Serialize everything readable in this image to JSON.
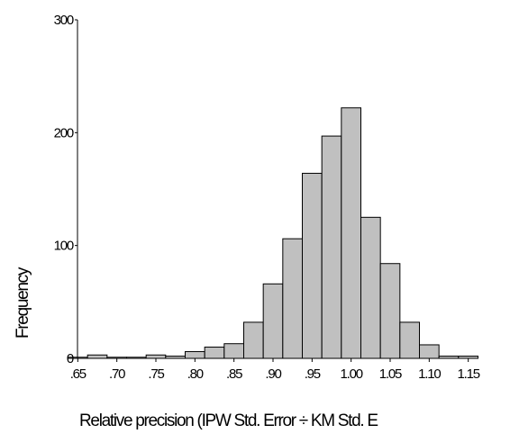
{
  "colors": {
    "bar_fill": "#c0c0c0",
    "bar_stroke": "#000000",
    "axis": "#000000",
    "background": "#ffffff"
  },
  "chart_data": {
    "type": "bar",
    "xlabel": "Relative precision (IPW Std. Error ÷ KM Std. E",
    "ylabel": "Frequency",
    "ylim": [
      0,
      300
    ],
    "yticks": [
      0,
      100,
      200,
      300
    ],
    "ytick_labels": [
      "0",
      "100",
      "200",
      "300"
    ],
    "xlim": [
      0.645,
      1.17
    ],
    "xticks": [
      0.65,
      0.7,
      0.75,
      0.8,
      0.85,
      0.9,
      0.95,
      1.0,
      1.05,
      1.1,
      1.15
    ],
    "xtick_labels": [
      ".65",
      ".70",
      ".75",
      ".80",
      ".85",
      ".90",
      ".95",
      "1.00",
      "1.05",
      "1.10",
      "1.15"
    ],
    "bin_width": 0.025,
    "bin_centers": [
      0.65,
      0.675,
      0.7,
      0.725,
      0.75,
      0.775,
      0.8,
      0.825,
      0.85,
      0.875,
      0.9,
      0.925,
      0.95,
      0.975,
      1.0,
      1.025,
      1.05,
      1.075,
      1.1,
      1.125,
      1.15
    ],
    "values": [
      1,
      3,
      1,
      1,
      3,
      2,
      6,
      10,
      13,
      32,
      66,
      106,
      164,
      197,
      222,
      125,
      84,
      32,
      12,
      2,
      2
    ],
    "grid": false,
    "legend": "none"
  }
}
